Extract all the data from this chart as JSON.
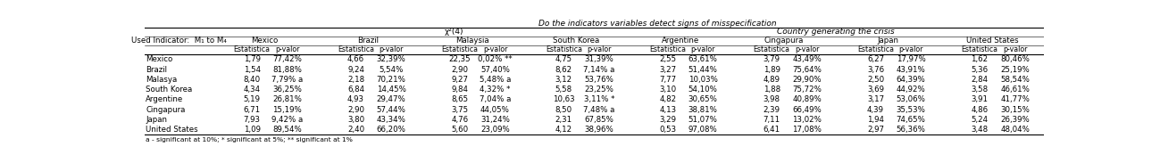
{
  "title_top": "Do the indicators variables detect signs of misspecification",
  "title_left": "χ²(4)",
  "title_right": "Country generating the crisis",
  "col_header_label": "Used Indicator:  M₁ to M₄",
  "countries_col": [
    "Mexico",
    "Brazil",
    "Malasya",
    "South Korea",
    "Argentine",
    "Cingapura",
    "Japan",
    "United States"
  ],
  "country_groups": [
    "Mexico",
    "Brazil",
    "Malaysia",
    "South Korea",
    "Argentine",
    "Cingapura",
    "Japan",
    "United States"
  ],
  "data": {
    "Mexico": [
      "1,79",
      "77,42%",
      "4,66",
      "32,39%",
      "22,35",
      "0,02% **",
      "4,75",
      "31,39%",
      "2,55",
      "63,61%",
      "3,79",
      "43,49%",
      "6,27",
      "17,97%",
      "1,62",
      "80,46%"
    ],
    "Brazil": [
      "1,54",
      "81,88%",
      "9,24",
      "5,54%",
      "2,90",
      "57,40%",
      "8,62",
      "7,14% a",
      "3,27",
      "51,44%",
      "1,89",
      "75,64%",
      "3,76",
      "43,91%",
      "5,36",
      "25,19%"
    ],
    "Malasya": [
      "8,40",
      "7,79% a",
      "2,18",
      "70,21%",
      "9,27",
      "5,48% a",
      "3,12",
      "53,76%",
      "7,77",
      "10,03%",
      "4,89",
      "29,90%",
      "2,50",
      "64,39%",
      "2,84",
      "58,54%"
    ],
    "South Korea": [
      "4,34",
      "36,25%",
      "6,84",
      "14,45%",
      "9,84",
      "4,32% *",
      "5,58",
      "23,25%",
      "3,10",
      "54,10%",
      "1,88",
      "75,72%",
      "3,69",
      "44,92%",
      "3,58",
      "46,61%"
    ],
    "Argentine": [
      "5,19",
      "26,81%",
      "4,93",
      "29,47%",
      "8,65",
      "7,04% a",
      "10,63",
      "3,11% *",
      "4,82",
      "30,65%",
      "3,98",
      "40,89%",
      "3,17",
      "53,06%",
      "3,91",
      "41,77%"
    ],
    "Cingapura": [
      "6,71",
      "15,19%",
      "2,90",
      "57,44%",
      "3,75",
      "44,05%",
      "8,50",
      "7,48% a",
      "4,13",
      "38,81%",
      "2,39",
      "66,49%",
      "4,39",
      "35,53%",
      "4,86",
      "30,15%"
    ],
    "Japan": [
      "7,93",
      "9,42% a",
      "3,80",
      "43,34%",
      "4,76",
      "31,24%",
      "2,31",
      "67,85%",
      "3,29",
      "51,07%",
      "7,11",
      "13,02%",
      "1,94",
      "74,65%",
      "5,24",
      "26,39%"
    ],
    "United States": [
      "1,09",
      "89,54%",
      "2,40",
      "66,20%",
      "5,60",
      "23,09%",
      "4,12",
      "38,96%",
      "0,53",
      "97,08%",
      "6,41",
      "17,08%",
      "2,97",
      "56,36%",
      "3,48",
      "48,04%"
    ]
  },
  "footnote": "a - significant at 10%; * significant at 5%; ** significant at 1%",
  "font_size": 6.2,
  "header_font_size": 6.5,
  "title_font_size": 6.5
}
